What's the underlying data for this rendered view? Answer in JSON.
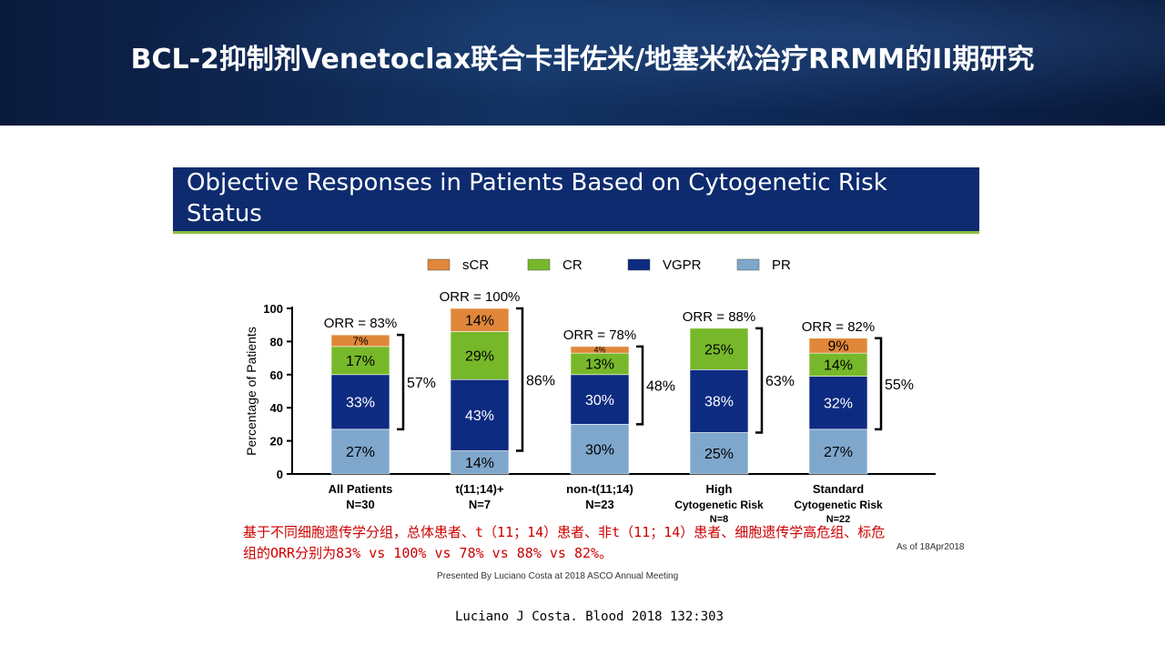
{
  "slide": {
    "title": "BCL-2抑制剂Venetoclax联合卡非佐米/地塞米松治疗RRMM的II期研究",
    "banner_title": "Objective Responses in Patients Based on Cytogenetic Risk Status",
    "caption": "基于不同细胞遗传学分组，总体患者、t（11；14）患者、非t（11；14）患者、细胞遗传学高危组、标危组的ORR分别为83% vs 100% vs 78% vs 88% vs 82%。",
    "as_of": "As of 18Apr2018",
    "presented_by": "Presented By Luciano Costa at 2018 ASCO Annual Meeting",
    "citation": "Luciano J Costa. Blood 2018 132:303"
  },
  "colors": {
    "sCR": "#e0873a",
    "CR": "#77b82a",
    "VGPR": "#0d2b80",
    "PR": "#7fa7cc",
    "header_bg": "#0d2550",
    "banner_bg": "#0d2b6e",
    "caption": "#cc0000"
  },
  "chart_data": {
    "type": "bar",
    "stacked": true,
    "ylabel": "Percentage of Patients",
    "ylim": [
      0,
      100
    ],
    "yticks": [
      0,
      20,
      40,
      60,
      80,
      100
    ],
    "legend": [
      "sCR",
      "CR",
      "VGPR",
      "PR"
    ],
    "legend_placement": "top",
    "groups": [
      {
        "category": "All Patients",
        "n": "N=30",
        "orr": "ORR = 83%",
        "bracket": "57%",
        "segments": [
          {
            "series": "PR",
            "value": 27,
            "label": "27%"
          },
          {
            "series": "VGPR",
            "value": 33,
            "label": "33%"
          },
          {
            "series": "CR",
            "value": 17,
            "label": "17%"
          },
          {
            "series": "sCR",
            "value": 7,
            "label": "7%"
          }
        ]
      },
      {
        "category": "t(11;14)+",
        "n": "N=7",
        "orr": "ORR = 100%",
        "bracket": "86%",
        "segments": [
          {
            "series": "PR",
            "value": 14,
            "label": "14%"
          },
          {
            "series": "VGPR",
            "value": 43,
            "label": "43%"
          },
          {
            "series": "CR",
            "value": 29,
            "label": "29%"
          },
          {
            "series": "sCR",
            "value": 14,
            "label": "14%"
          }
        ]
      },
      {
        "category": "non-t(11;14)",
        "n": "N=23",
        "orr": "ORR = 78%",
        "bracket": "48%",
        "segments": [
          {
            "series": "PR",
            "value": 30,
            "label": "30%"
          },
          {
            "series": "VGPR",
            "value": 30,
            "label": "30%"
          },
          {
            "series": "CR",
            "value": 13,
            "label": "13%"
          },
          {
            "series": "sCR",
            "value": 4,
            "label": "4%"
          }
        ]
      },
      {
        "category": "High\nCytogenetic Risk",
        "n": "N=8",
        "orr": "ORR = 88%",
        "bracket": "63%",
        "segments": [
          {
            "series": "PR",
            "value": 25,
            "label": "25%"
          },
          {
            "series": "VGPR",
            "value": 38,
            "label": "38%"
          },
          {
            "series": "CR",
            "value": 25,
            "label": "25%"
          }
        ]
      },
      {
        "category": "Standard\nCytogenetic Risk",
        "n": "N=22",
        "orr": "ORR = 82%",
        "bracket": "55%",
        "segments": [
          {
            "series": "PR",
            "value": 27,
            "label": "27%"
          },
          {
            "series": "VGPR",
            "value": 32,
            "label": "32%"
          },
          {
            "series": "CR",
            "value": 14,
            "label": "14%"
          },
          {
            "series": "sCR",
            "value": 9,
            "label": "9%"
          }
        ]
      }
    ]
  }
}
